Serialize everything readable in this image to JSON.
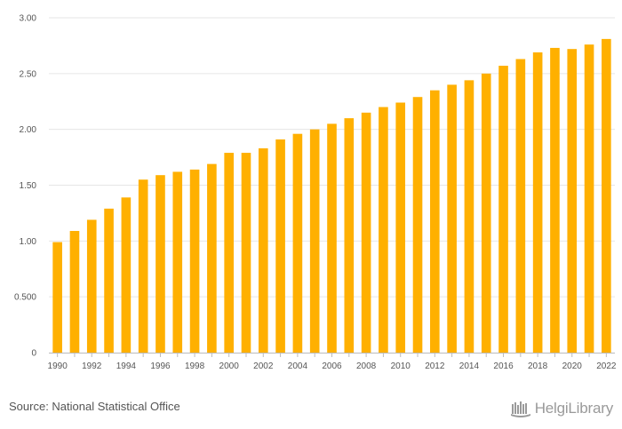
{
  "chart_data": {
    "type": "bar",
    "categories": [
      "1990",
      "1991",
      "1992",
      "1993",
      "1994",
      "1995",
      "1996",
      "1997",
      "1998",
      "1999",
      "2000",
      "2001",
      "2002",
      "2003",
      "2004",
      "2005",
      "2006",
      "2007",
      "2008",
      "2009",
      "2010",
      "2011",
      "2012",
      "2013",
      "2014",
      "2015",
      "2016",
      "2017",
      "2018",
      "2019",
      "2020",
      "2021",
      "2022"
    ],
    "x_tick_labels": [
      "1990",
      "1992",
      "1994",
      "1996",
      "1998",
      "2000",
      "2002",
      "2004",
      "2006",
      "2008",
      "2010",
      "2012",
      "2014",
      "2016",
      "2018",
      "2020",
      "2022"
    ],
    "values": [
      0.99,
      1.09,
      1.19,
      1.29,
      1.39,
      1.55,
      1.59,
      1.62,
      1.64,
      1.69,
      1.79,
      1.79,
      1.83,
      1.91,
      1.96,
      2.0,
      2.05,
      2.1,
      2.15,
      2.2,
      2.24,
      2.29,
      2.35,
      2.4,
      2.44,
      2.5,
      2.57,
      2.63,
      2.69,
      2.73,
      2.72,
      2.76,
      2.81
    ],
    "y_ticks": [
      0,
      0.5,
      1.0,
      1.5,
      2.0,
      2.5,
      3.0
    ],
    "y_tick_labels": [
      "0",
      "0.500",
      "1.00",
      "1.50",
      "2.00",
      "2.50",
      "3.00"
    ],
    "ylim": [
      0,
      3.0
    ],
    "grid": true,
    "colors": {
      "bar": "#FFB000",
      "grid": "#e6e6e6",
      "axis": "#bbbbbb"
    }
  },
  "footer": {
    "source": "Source: National Statistical Office",
    "brand": "HelgiLibrary",
    "brand_icon": "library-logo-icon"
  }
}
